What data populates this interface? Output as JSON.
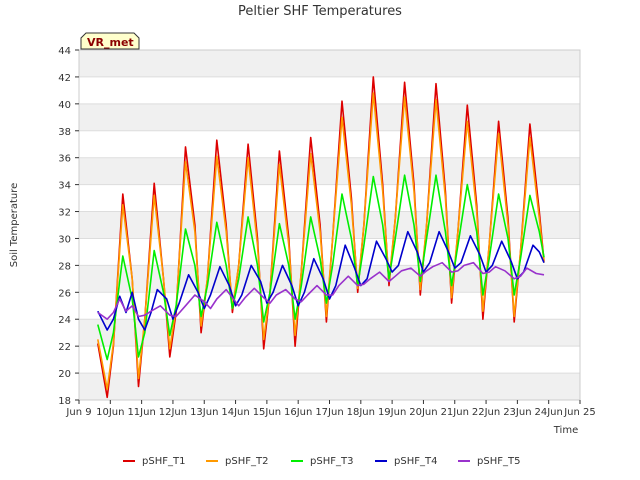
{
  "chart_data": {
    "type": "line",
    "title": "Peltier SHF Temperatures",
    "xlabel": "Time",
    "ylabel": "Soil Temperature",
    "xlim": [
      9,
      25
    ],
    "ylim": [
      18,
      44
    ],
    "yticks": [
      18,
      20,
      22,
      24,
      26,
      28,
      30,
      32,
      34,
      36,
      38,
      40,
      42,
      44
    ],
    "xticks": [
      {
        "x": 9,
        "label": "Jun 9"
      },
      {
        "x": 10,
        "label": "10Jun"
      },
      {
        "x": 11,
        "label": "11Jun"
      },
      {
        "x": 12,
        "label": "12Jun"
      },
      {
        "x": 13,
        "label": "13Jun"
      },
      {
        "x": 14,
        "label": "14Jun"
      },
      {
        "x": 15,
        "label": "15Jun"
      },
      {
        "x": 16,
        "label": "16Jun"
      },
      {
        "x": 17,
        "label": "17Jun"
      },
      {
        "x": 18,
        "label": "18Jun"
      },
      {
        "x": 19,
        "label": "19Jun"
      },
      {
        "x": 20,
        "label": "20Jun"
      },
      {
        "x": 21,
        "label": "21Jun"
      },
      {
        "x": 22,
        "label": "22Jun"
      },
      {
        "x": 23,
        "label": "23Jun"
      },
      {
        "x": 24,
        "label": "24Jun"
      },
      {
        "x": 25,
        "label": "Jun 25"
      }
    ],
    "grid": "horizontal bands",
    "legend_position": "bottom",
    "tag": "VR_met",
    "series": [
      {
        "name": "pSHF_T1",
        "color": "#dd0000",
        "points": [
          [
            9.6,
            22.2
          ],
          [
            9.9,
            18.2
          ],
          [
            10.1,
            22.0
          ],
          [
            10.4,
            33.3
          ],
          [
            10.7,
            27.0
          ],
          [
            10.9,
            19.0
          ],
          [
            11.1,
            24.0
          ],
          [
            11.4,
            34.1
          ],
          [
            11.7,
            27.0
          ],
          [
            11.9,
            21.2
          ],
          [
            12.1,
            24.5
          ],
          [
            12.4,
            36.8
          ],
          [
            12.7,
            31.0
          ],
          [
            12.9,
            23.0
          ],
          [
            13.1,
            27.0
          ],
          [
            13.4,
            37.3
          ],
          [
            13.7,
            31.0
          ],
          [
            13.9,
            24.5
          ],
          [
            14.1,
            28.0
          ],
          [
            14.4,
            37.0
          ],
          [
            14.7,
            30.0
          ],
          [
            14.9,
            21.8
          ],
          [
            15.1,
            26.0
          ],
          [
            15.4,
            36.5
          ],
          [
            15.7,
            30.0
          ],
          [
            15.9,
            22.0
          ],
          [
            16.1,
            27.5
          ],
          [
            16.4,
            37.5
          ],
          [
            16.7,
            31.0
          ],
          [
            16.9,
            23.8
          ],
          [
            17.1,
            30.0
          ],
          [
            17.4,
            40.2
          ],
          [
            17.7,
            33.0
          ],
          [
            17.9,
            26.0
          ],
          [
            18.1,
            31.0
          ],
          [
            18.4,
            42.0
          ],
          [
            18.7,
            34.0
          ],
          [
            18.9,
            26.5
          ],
          [
            19.1,
            31.5
          ],
          [
            19.4,
            41.6
          ],
          [
            19.7,
            34.0
          ],
          [
            19.9,
            25.8
          ],
          [
            20.1,
            31.0
          ],
          [
            20.4,
            41.5
          ],
          [
            20.7,
            33.5
          ],
          [
            20.9,
            25.2
          ],
          [
            21.1,
            30.5
          ],
          [
            21.4,
            39.9
          ],
          [
            21.7,
            32.5
          ],
          [
            21.9,
            24.0
          ],
          [
            22.1,
            29.5
          ],
          [
            22.4,
            38.7
          ],
          [
            22.7,
            31.5
          ],
          [
            22.9,
            23.8
          ],
          [
            23.1,
            29.0
          ],
          [
            23.4,
            38.5
          ],
          [
            23.7,
            32.0
          ],
          [
            23.85,
            28.3
          ]
        ]
      },
      {
        "name": "pSHF_T2",
        "color": "#ff9900",
        "points": [
          [
            9.6,
            22.5
          ],
          [
            9.9,
            18.8
          ],
          [
            10.1,
            22.2
          ],
          [
            10.4,
            32.5
          ],
          [
            10.7,
            27.0
          ],
          [
            10.9,
            19.6
          ],
          [
            11.1,
            24.0
          ],
          [
            11.4,
            33.2
          ],
          [
            11.7,
            27.0
          ],
          [
            11.9,
            21.8
          ],
          [
            12.1,
            24.8
          ],
          [
            12.4,
            35.7
          ],
          [
            12.7,
            30.5
          ],
          [
            12.9,
            23.5
          ],
          [
            13.1,
            27.0
          ],
          [
            13.4,
            36.1
          ],
          [
            13.7,
            30.5
          ],
          [
            13.9,
            24.8
          ],
          [
            14.1,
            28.0
          ],
          [
            14.4,
            36.0
          ],
          [
            14.7,
            29.5
          ],
          [
            14.9,
            22.5
          ],
          [
            15.1,
            26.0
          ],
          [
            15.4,
            35.5
          ],
          [
            15.7,
            29.5
          ],
          [
            15.9,
            22.8
          ],
          [
            16.1,
            27.5
          ],
          [
            16.4,
            36.3
          ],
          [
            16.7,
            30.5
          ],
          [
            16.9,
            24.2
          ],
          [
            17.1,
            30.0
          ],
          [
            17.4,
            39.0
          ],
          [
            17.7,
            32.5
          ],
          [
            17.9,
            26.3
          ],
          [
            18.1,
            31.0
          ],
          [
            18.4,
            40.8
          ],
          [
            18.7,
            33.5
          ],
          [
            18.9,
            26.8
          ],
          [
            19.1,
            31.5
          ],
          [
            19.4,
            40.5
          ],
          [
            19.7,
            33.5
          ],
          [
            19.9,
            26.2
          ],
          [
            20.1,
            31.0
          ],
          [
            20.4,
            40.3
          ],
          [
            20.7,
            33.0
          ],
          [
            20.9,
            25.6
          ],
          [
            21.1,
            30.5
          ],
          [
            21.4,
            38.7
          ],
          [
            21.7,
            32.0
          ],
          [
            21.9,
            24.6
          ],
          [
            22.1,
            29.5
          ],
          [
            22.4,
            37.8
          ],
          [
            22.7,
            31.0
          ],
          [
            22.9,
            24.2
          ],
          [
            23.1,
            29.0
          ],
          [
            23.4,
            37.5
          ],
          [
            23.7,
            31.5
          ],
          [
            23.85,
            28.2
          ]
        ]
      },
      {
        "name": "pSHF_T3",
        "color": "#00ee00",
        "points": [
          [
            9.6,
            23.6
          ],
          [
            9.9,
            21.0
          ],
          [
            10.1,
            23.0
          ],
          [
            10.4,
            28.7
          ],
          [
            10.7,
            25.5
          ],
          [
            10.9,
            21.2
          ],
          [
            11.1,
            23.0
          ],
          [
            11.4,
            29.1
          ],
          [
            11.7,
            26.0
          ],
          [
            11.9,
            22.8
          ],
          [
            12.1,
            25.0
          ],
          [
            12.4,
            30.7
          ],
          [
            12.7,
            28.0
          ],
          [
            12.9,
            24.2
          ],
          [
            13.1,
            26.5
          ],
          [
            13.4,
            31.2
          ],
          [
            13.7,
            28.0
          ],
          [
            13.9,
            24.8
          ],
          [
            14.1,
            27.0
          ],
          [
            14.4,
            31.6
          ],
          [
            14.7,
            28.0
          ],
          [
            14.9,
            23.8
          ],
          [
            15.1,
            26.0
          ],
          [
            15.4,
            31.1
          ],
          [
            15.7,
            28.0
          ],
          [
            15.9,
            24.0
          ],
          [
            16.1,
            26.5
          ],
          [
            16.4,
            31.6
          ],
          [
            16.7,
            28.5
          ],
          [
            16.9,
            25.2
          ],
          [
            17.1,
            28.0
          ],
          [
            17.4,
            33.3
          ],
          [
            17.7,
            30.0
          ],
          [
            17.9,
            26.5
          ],
          [
            18.1,
            29.5
          ],
          [
            18.4,
            34.6
          ],
          [
            18.7,
            31.0
          ],
          [
            18.9,
            27.0
          ],
          [
            19.1,
            30.0
          ],
          [
            19.4,
            34.7
          ],
          [
            19.7,
            31.0
          ],
          [
            19.9,
            26.8
          ],
          [
            20.1,
            30.0
          ],
          [
            20.4,
            34.7
          ],
          [
            20.7,
            30.5
          ],
          [
            20.9,
            26.5
          ],
          [
            21.1,
            29.5
          ],
          [
            21.4,
            34.0
          ],
          [
            21.7,
            30.5
          ],
          [
            21.9,
            25.8
          ],
          [
            22.1,
            28.5
          ],
          [
            22.4,
            33.3
          ],
          [
            22.7,
            30.0
          ],
          [
            22.9,
            25.8
          ],
          [
            23.1,
            28.5
          ],
          [
            23.4,
            33.2
          ],
          [
            23.7,
            30.5
          ],
          [
            23.85,
            28.6
          ]
        ]
      },
      {
        "name": "pSHF_T4",
        "color": "#0000cc",
        "points": [
          [
            9.6,
            24.6
          ],
          [
            9.9,
            23.2
          ],
          [
            10.1,
            24.0
          ],
          [
            10.3,
            25.7
          ],
          [
            10.5,
            24.5
          ],
          [
            10.7,
            26.0
          ],
          [
            10.9,
            24.0
          ],
          [
            11.1,
            23.2
          ],
          [
            11.3,
            24.5
          ],
          [
            11.5,
            26.2
          ],
          [
            11.8,
            25.5
          ],
          [
            12.0,
            24.0
          ],
          [
            12.2,
            25.2
          ],
          [
            12.5,
            27.3
          ],
          [
            12.8,
            26.0
          ],
          [
            13.0,
            24.8
          ],
          [
            13.2,
            25.8
          ],
          [
            13.5,
            27.9
          ],
          [
            13.8,
            26.5
          ],
          [
            14.0,
            25.0
          ],
          [
            14.2,
            25.8
          ],
          [
            14.5,
            28.0
          ],
          [
            14.8,
            26.8
          ],
          [
            15.0,
            25.2
          ],
          [
            15.2,
            26.0
          ],
          [
            15.5,
            28.0
          ],
          [
            15.8,
            26.5
          ],
          [
            16.0,
            25.0
          ],
          [
            16.2,
            26.0
          ],
          [
            16.5,
            28.5
          ],
          [
            16.8,
            27.0
          ],
          [
            17.0,
            25.5
          ],
          [
            17.2,
            26.5
          ],
          [
            17.5,
            29.5
          ],
          [
            17.8,
            27.8
          ],
          [
            18.0,
            26.5
          ],
          [
            18.2,
            27.0
          ],
          [
            18.5,
            29.8
          ],
          [
            18.8,
            28.5
          ],
          [
            19.0,
            27.5
          ],
          [
            19.2,
            28.0
          ],
          [
            19.5,
            30.5
          ],
          [
            19.8,
            29.0
          ],
          [
            20.0,
            27.5
          ],
          [
            20.2,
            28.2
          ],
          [
            20.5,
            30.5
          ],
          [
            20.8,
            29.0
          ],
          [
            21.0,
            27.8
          ],
          [
            21.2,
            28.2
          ],
          [
            21.5,
            30.2
          ],
          [
            21.8,
            28.8
          ],
          [
            22.0,
            27.5
          ],
          [
            22.2,
            28.0
          ],
          [
            22.5,
            29.8
          ],
          [
            22.8,
            28.3
          ],
          [
            23.0,
            27.0
          ],
          [
            23.2,
            27.5
          ],
          [
            23.5,
            29.5
          ],
          [
            23.7,
            29.0
          ],
          [
            23.85,
            28.2
          ]
        ]
      },
      {
        "name": "pSHF_T5",
        "color": "#9933cc",
        "points": [
          [
            9.6,
            24.5
          ],
          [
            9.9,
            24.0
          ],
          [
            10.1,
            24.5
          ],
          [
            10.3,
            25.5
          ],
          [
            10.5,
            24.6
          ],
          [
            10.7,
            25.0
          ],
          [
            10.9,
            24.2
          ],
          [
            11.1,
            24.3
          ],
          [
            11.3,
            24.6
          ],
          [
            11.6,
            25.0
          ],
          [
            11.9,
            24.3
          ],
          [
            12.1,
            24.2
          ],
          [
            12.4,
            25.0
          ],
          [
            12.7,
            25.8
          ],
          [
            13.0,
            25.3
          ],
          [
            13.2,
            24.8
          ],
          [
            13.4,
            25.5
          ],
          [
            13.7,
            26.2
          ],
          [
            13.9,
            25.6
          ],
          [
            14.1,
            25.0
          ],
          [
            14.3,
            25.6
          ],
          [
            14.6,
            26.3
          ],
          [
            14.9,
            25.6
          ],
          [
            15.1,
            25.2
          ],
          [
            15.3,
            25.8
          ],
          [
            15.6,
            26.2
          ],
          [
            15.9,
            25.5
          ],
          [
            16.1,
            25.3
          ],
          [
            16.3,
            25.8
          ],
          [
            16.6,
            26.5
          ],
          [
            16.9,
            25.8
          ],
          [
            17.1,
            25.8
          ],
          [
            17.3,
            26.5
          ],
          [
            17.6,
            27.2
          ],
          [
            17.9,
            26.5
          ],
          [
            18.1,
            26.6
          ],
          [
            18.3,
            27.0
          ],
          [
            18.6,
            27.5
          ],
          [
            18.9,
            26.8
          ],
          [
            19.1,
            27.2
          ],
          [
            19.3,
            27.6
          ],
          [
            19.6,
            27.8
          ],
          [
            19.9,
            27.2
          ],
          [
            20.1,
            27.6
          ],
          [
            20.3,
            27.9
          ],
          [
            20.6,
            28.2
          ],
          [
            20.9,
            27.5
          ],
          [
            21.1,
            27.6
          ],
          [
            21.3,
            28.0
          ],
          [
            21.6,
            28.2
          ],
          [
            21.9,
            27.4
          ],
          [
            22.1,
            27.5
          ],
          [
            22.3,
            27.9
          ],
          [
            22.6,
            27.6
          ],
          [
            22.9,
            27.0
          ],
          [
            23.1,
            27.2
          ],
          [
            23.3,
            27.8
          ],
          [
            23.6,
            27.4
          ],
          [
            23.85,
            27.3
          ]
        ]
      }
    ]
  }
}
